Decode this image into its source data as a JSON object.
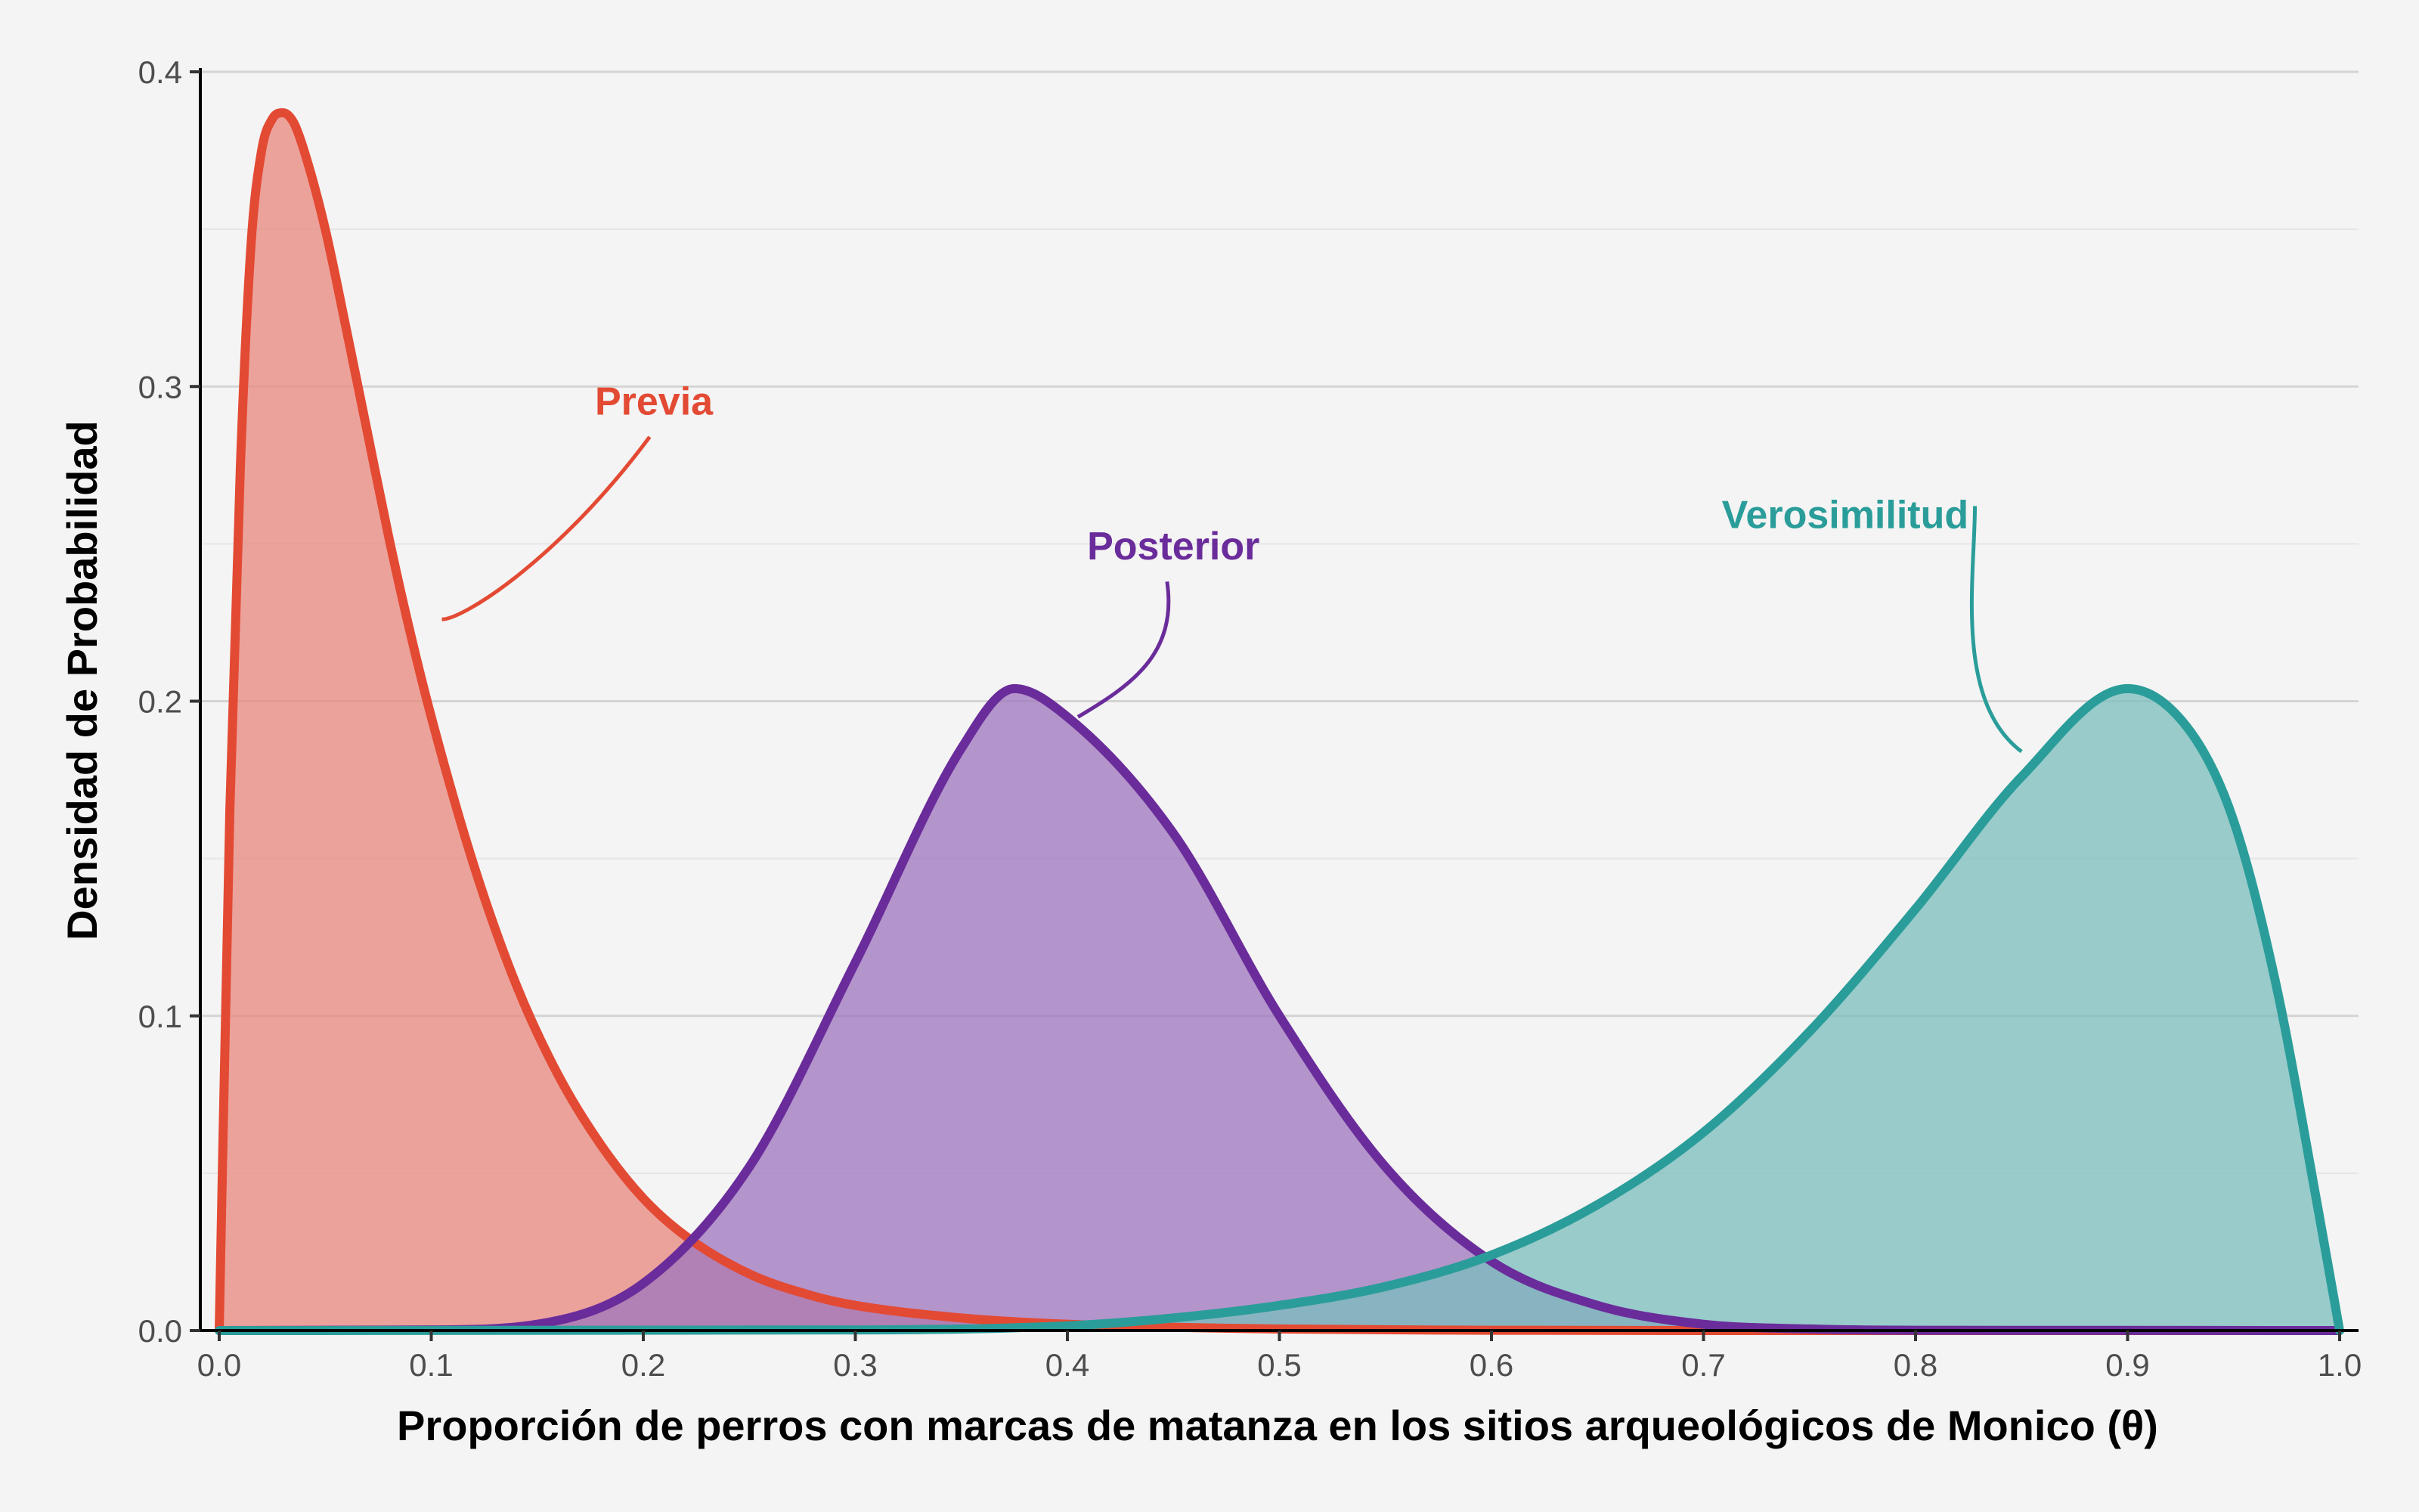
{
  "chart_data": {
    "type": "area",
    "xlabel": "Proporción de perros con marcas de matanza en los sitios arqueológicos de Monico (θ)",
    "ylabel": "Densidad de Probabilidad",
    "xlim": [
      0.0,
      1.0
    ],
    "ylim": [
      0.0,
      0.4
    ],
    "x_ticks": [
      "0.0",
      "0.1",
      "0.2",
      "0.3",
      "0.4",
      "0.5",
      "0.6",
      "0.7",
      "0.8",
      "0.9",
      "1.0"
    ],
    "y_ticks": [
      "0.0",
      "0.1",
      "0.2",
      "0.3",
      "0.4"
    ],
    "grid": true,
    "legend": "none",
    "series": [
      {
        "name": "Previa",
        "color": "#e34a33",
        "fill": "#e8877d",
        "x": [
          0.0,
          0.005,
          0.01,
          0.015,
          0.02,
          0.025,
          0.03,
          0.035,
          0.04,
          0.05,
          0.06,
          0.07,
          0.08,
          0.09,
          0.1,
          0.12,
          0.14,
          0.16,
          0.18,
          0.2,
          0.22,
          0.25,
          0.28,
          0.3,
          0.35,
          0.4,
          0.5,
          0.6,
          0.7,
          1.0
        ],
        "y": [
          0.0,
          0.165,
          0.275,
          0.345,
          0.375,
          0.385,
          0.387,
          0.384,
          0.375,
          0.35,
          0.318,
          0.285,
          0.252,
          0.222,
          0.195,
          0.148,
          0.11,
          0.081,
          0.059,
          0.042,
          0.03,
          0.018,
          0.011,
          0.008,
          0.004,
          0.002,
          0.0005,
          0.0001,
          0.0,
          0.0
        ]
      },
      {
        "name": "Posterior",
        "color": "#6a2c9a",
        "fill": "#9e74bd",
        "x": [
          0.0,
          0.1,
          0.15,
          0.2,
          0.25,
          0.3,
          0.35,
          0.375,
          0.4,
          0.45,
          0.5,
          0.55,
          0.6,
          0.65,
          0.7,
          0.75,
          0.8,
          1.0
        ],
        "y": [
          0.0,
          0.0002,
          0.002,
          0.015,
          0.052,
          0.117,
          0.185,
          0.204,
          0.195,
          0.158,
          0.1,
          0.052,
          0.022,
          0.008,
          0.002,
          0.0005,
          0.0001,
          0.0
        ]
      },
      {
        "name": "Verosimilitud",
        "color": "#2a9d9a",
        "fill": "#79bdbc",
        "x": [
          0.0,
          0.3,
          0.4,
          0.45,
          0.5,
          0.55,
          0.6,
          0.65,
          0.7,
          0.75,
          0.8,
          0.85,
          0.9,
          0.93,
          0.95,
          0.97,
          0.99,
          1.0
        ],
        "y": [
          0.0,
          0.0002,
          0.0015,
          0.004,
          0.008,
          0.014,
          0.024,
          0.04,
          0.063,
          0.095,
          0.134,
          0.176,
          0.204,
          0.19,
          0.162,
          0.11,
          0.038,
          0.0
        ]
      }
    ]
  }
}
